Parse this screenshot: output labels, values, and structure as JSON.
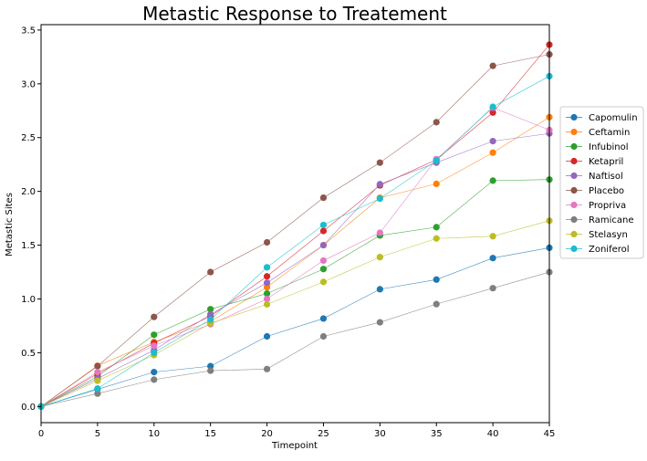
{
  "chart_data": {
    "type": "line",
    "title": "Metastic Response to Treatement",
    "xlabel": "Timepoint",
    "ylabel": "Metastic Sites",
    "x": [
      0,
      5,
      10,
      15,
      20,
      25,
      30,
      35,
      40,
      45
    ],
    "xlim": [
      0,
      45
    ],
    "ylim": [
      -0.15,
      3.55
    ],
    "xticks": [
      0,
      5,
      10,
      15,
      20,
      25,
      30,
      35,
      40,
      45
    ],
    "yticks": [
      0.0,
      0.5,
      1.0,
      1.5,
      2.0,
      2.5,
      3.0,
      3.5
    ],
    "ytick_labels": [
      "0.0",
      "0.5",
      "1.0",
      "1.5",
      "2.0",
      "2.5",
      "3.0",
      "3.5"
    ],
    "grid": false,
    "legend_position": "right-outside",
    "series": [
      {
        "name": "Capomulin",
        "color": "#1f77b4",
        "values": [
          0,
          0.16,
          0.32,
          0.375,
          0.652,
          0.818,
          1.09,
          1.18,
          1.38,
          1.476
        ]
      },
      {
        "name": "Ceftamin",
        "color": "#ff7f0e",
        "values": [
          0,
          0.38,
          0.6,
          0.79,
          1.11,
          1.5,
          1.94,
          2.07,
          2.36,
          2.69
        ]
      },
      {
        "name": "Infubinol",
        "color": "#2ca02c",
        "values": [
          0,
          0.28,
          0.667,
          0.905,
          1.05,
          1.278,
          1.59,
          1.667,
          2.1,
          2.11
        ]
      },
      {
        "name": "Ketapril",
        "color": "#d62728",
        "values": [
          0,
          0.305,
          0.59,
          0.84,
          1.21,
          1.632,
          2.056,
          2.295,
          2.733,
          3.364
        ]
      },
      {
        "name": "Naftisol",
        "color": "#9467bd",
        "values": [
          0,
          0.26,
          0.524,
          0.857,
          1.15,
          1.5,
          2.067,
          2.267,
          2.467,
          2.538
        ]
      },
      {
        "name": "Placebo",
        "color": "#8c564b",
        "values": [
          0,
          0.375,
          0.833,
          1.25,
          1.526,
          1.941,
          2.267,
          2.643,
          3.167,
          3.273
        ]
      },
      {
        "name": "Propriva",
        "color": "#e377c2",
        "values": [
          0,
          0.32,
          0.565,
          0.765,
          1.0,
          1.357,
          1.615,
          2.3,
          2.778,
          2.571
        ]
      },
      {
        "name": "Ramicane",
        "color": "#7f7f7f",
        "values": [
          0,
          0.12,
          0.25,
          0.333,
          0.348,
          0.652,
          0.783,
          0.952,
          1.1,
          1.25
        ]
      },
      {
        "name": "Stelasyn",
        "color": "#bcbd22",
        "values": [
          0,
          0.24,
          0.478,
          0.773,
          0.95,
          1.158,
          1.389,
          1.562,
          1.583,
          1.727
        ]
      },
      {
        "name": "Zoniferol",
        "color": "#17becf",
        "values": [
          0,
          0.167,
          0.5,
          0.809,
          1.294,
          1.688,
          1.933,
          2.286,
          2.786,
          3.071
        ]
      }
    ]
  }
}
